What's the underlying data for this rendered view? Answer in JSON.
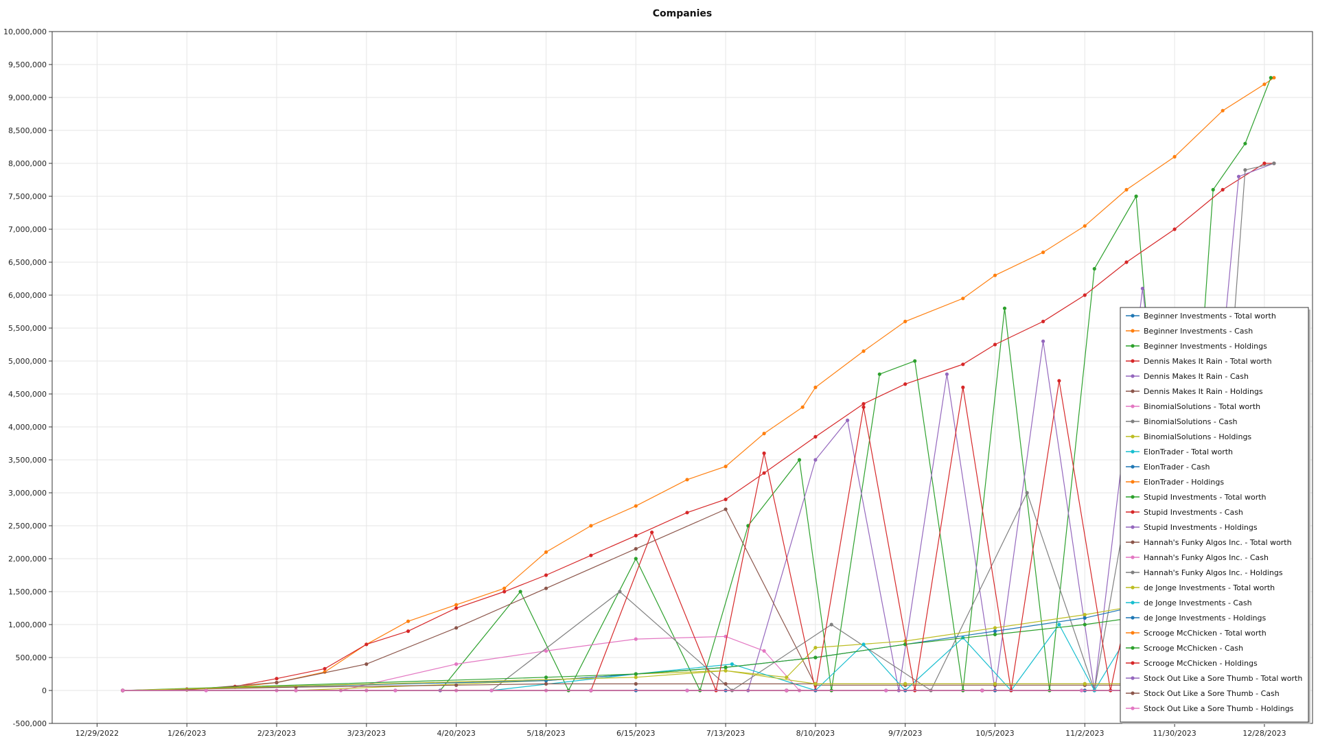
{
  "chart_data": {
    "type": "line",
    "title": "Companies",
    "xlabel": "",
    "ylabel": "",
    "ylim": [
      -500000,
      10000000
    ],
    "xlim": [
      "2022-12-15",
      "2024-01-12"
    ],
    "y_ticks": [
      -500000,
      0,
      500000,
      1000000,
      1500000,
      2000000,
      2500000,
      3000000,
      3500000,
      4000000,
      4500000,
      5000000,
      5500000,
      6000000,
      6500000,
      7000000,
      7500000,
      8000000,
      8500000,
      9000000,
      9500000,
      10000000
    ],
    "y_tick_labels": [
      "-500,000",
      "0",
      "500,000",
      "1,000,000",
      "1,500,000",
      "2,000,000",
      "2,500,000",
      "3,000,000",
      "3,500,000",
      "4,000,000",
      "4,500,000",
      "5,000,000",
      "5,500,000",
      "6,000,000",
      "6,500,000",
      "7,000,000",
      "7,500,000",
      "8,000,000",
      "8,500,000",
      "9,000,000",
      "9,500,000",
      "10,000,000"
    ],
    "x_ticks": [
      "2022-12-29",
      "2023-01-26",
      "2023-02-23",
      "2023-03-23",
      "2023-04-20",
      "2023-05-18",
      "2023-06-15",
      "2023-07-13",
      "2023-08-10",
      "2023-09-07",
      "2023-10-05",
      "2023-11-02",
      "2023-11-30",
      "2023-12-28"
    ],
    "x_tick_labels": [
      "12/29/2022",
      "1/26/2023",
      "2/23/2023",
      "3/23/2023",
      "4/20/2023",
      "5/18/2023",
      "6/15/2023",
      "7/13/2023",
      "8/10/2023",
      "9/7/2023",
      "10/5/2023",
      "11/2/2023",
      "11/30/2023",
      "12/28/2023"
    ],
    "grid": true,
    "legend_position": "right",
    "series": [
      {
        "name": "Beginner Investments - Total worth",
        "color": "#1f77b4",
        "x": [
          "2023-01-06",
          "2023-02-01",
          "2023-03-01",
          "2023-04-01",
          "2023-05-01",
          "2023-06-01",
          "2023-07-01",
          "2023-08-01",
          "2023-09-01",
          "2023-10-01",
          "2023-11-01",
          "2023-12-01",
          "2023-12-31"
        ],
        "y": [
          0,
          0,
          0,
          0,
          0,
          0,
          0,
          0,
          0,
          0,
          0,
          0,
          0
        ]
      },
      {
        "name": "Beginner Investments - Cash",
        "color": "#ff7f0e",
        "x": [
          "2023-01-06",
          "2023-01-26",
          "2023-02-10",
          "2023-02-23",
          "2023-03-10",
          "2023-03-23",
          "2023-04-05",
          "2023-04-20",
          "2023-05-05",
          "2023-05-18",
          "2023-06-01",
          "2023-06-15",
          "2023-07-01",
          "2023-07-13",
          "2023-07-25",
          "2023-08-06",
          "2023-08-10",
          "2023-08-25",
          "2023-09-07",
          "2023-09-25",
          "2023-10-05",
          "2023-10-20",
          "2023-11-02",
          "2023-11-15",
          "2023-11-30",
          "2023-12-15",
          "2023-12-28",
          "2023-12-31"
        ],
        "y": [
          0,
          10000,
          50000,
          120000,
          280000,
          700000,
          1050000,
          1300000,
          1550000,
          2100000,
          2500000,
          2800000,
          3200000,
          3400000,
          3900000,
          4300000,
          4600000,
          5150000,
          5600000,
          5950000,
          6300000,
          6650000,
          7050000,
          7600000,
          8100000,
          8800000,
          9200000,
          9300000
        ]
      },
      {
        "name": "Beginner Investments - Holdings",
        "color": "#2ca02c",
        "x": [
          "2023-01-06",
          "2023-03-01",
          "2023-04-15",
          "2023-05-10",
          "2023-05-25",
          "2023-06-15",
          "2023-07-05",
          "2023-07-20",
          "2023-08-05",
          "2023-08-15",
          "2023-08-30",
          "2023-09-10",
          "2023-09-25",
          "2023-10-08",
          "2023-10-22",
          "2023-11-05",
          "2023-11-18",
          "2023-12-01",
          "2023-12-12",
          "2023-12-22",
          "2023-12-30"
        ],
        "y": [
          0,
          0,
          0,
          1500000,
          0,
          2000000,
          0,
          2500000,
          3500000,
          0,
          4800000,
          5000000,
          0,
          5800000,
          0,
          6400000,
          7500000,
          0,
          7600000,
          8300000,
          9300000
        ]
      },
      {
        "name": "Dennis Makes It Rain - Total worth",
        "color": "#d62728",
        "x": [
          "2023-01-06",
          "2023-01-26",
          "2023-02-10",
          "2023-02-23",
          "2023-03-10",
          "2023-03-23",
          "2023-04-05",
          "2023-04-20",
          "2023-05-05",
          "2023-05-18",
          "2023-06-01",
          "2023-06-15",
          "2023-07-01",
          "2023-07-13",
          "2023-07-25",
          "2023-08-10",
          "2023-08-25",
          "2023-09-07",
          "2023-09-25",
          "2023-10-05",
          "2023-10-20",
          "2023-11-02",
          "2023-11-15",
          "2023-11-30",
          "2023-12-15",
          "2023-12-28",
          "2023-12-31"
        ],
        "y": [
          0,
          20000,
          60000,
          180000,
          330000,
          700000,
          900000,
          1250000,
          1500000,
          1750000,
          2050000,
          2350000,
          2700000,
          2900000,
          3300000,
          3850000,
          4350000,
          4650000,
          4950000,
          5250000,
          5600000,
          6000000,
          6500000,
          7000000,
          7600000,
          8000000,
          8000000
        ]
      },
      {
        "name": "Dennis Makes It Rain - Cash",
        "color": "#9467bd",
        "x": [
          "2023-01-06",
          "2023-04-15",
          "2023-06-01",
          "2023-07-20",
          "2023-08-10",
          "2023-08-20",
          "2023-09-05",
          "2023-09-20",
          "2023-10-05",
          "2023-10-20",
          "2023-11-05",
          "2023-11-20",
          "2023-12-05",
          "2023-12-20",
          "2023-12-31"
        ],
        "y": [
          0,
          0,
          0,
          0,
          3500000,
          4100000,
          0,
          4800000,
          0,
          5300000,
          0,
          6100000,
          0,
          7800000,
          8000000
        ]
      },
      {
        "name": "Dennis Makes It Rain - Holdings",
        "color": "#8c564b",
        "x": [
          "2023-01-06",
          "2023-01-26",
          "2023-02-23",
          "2023-03-23",
          "2023-04-20",
          "2023-05-18",
          "2023-06-15",
          "2023-07-13",
          "2023-08-10",
          "2023-09-07",
          "2023-10-05",
          "2023-11-02",
          "2023-11-30",
          "2023-12-28",
          "2023-12-31"
        ],
        "y": [
          0,
          10000,
          120000,
          400000,
          950000,
          1550000,
          2150000,
          2750000,
          80000,
          80000,
          80000,
          80000,
          80000,
          80000,
          80000
        ]
      },
      {
        "name": "BinomialSolutions - Total worth",
        "color": "#e377c2",
        "x": [
          "2023-01-06",
          "2023-03-15",
          "2023-04-20",
          "2023-05-18",
          "2023-06-15",
          "2023-07-13",
          "2023-07-25",
          "2023-08-05",
          "2023-09-07",
          "2023-10-05",
          "2023-11-02",
          "2023-12-01",
          "2023-12-31"
        ],
        "y": [
          0,
          0,
          400000,
          600000,
          780000,
          820000,
          600000,
          0,
          0,
          0,
          0,
          0,
          0
        ]
      },
      {
        "name": "BinomialSolutions - Cash",
        "color": "#7f7f7f",
        "x": [
          "2023-01-06",
          "2023-05-01",
          "2023-06-10",
          "2023-07-15",
          "2023-08-15",
          "2023-09-15",
          "2023-10-15",
          "2023-11-05",
          "2023-11-25",
          "2023-12-10",
          "2023-12-22",
          "2023-12-31"
        ],
        "y": [
          0,
          0,
          1500000,
          0,
          1000000,
          0,
          3000000,
          0,
          5500000,
          0,
          7900000,
          8000000
        ]
      },
      {
        "name": "BinomialSolutions - Holdings",
        "color": "#bcbd22",
        "x": [
          "2023-01-06",
          "2023-03-01",
          "2023-05-18",
          "2023-06-15",
          "2023-07-13",
          "2023-08-01",
          "2023-08-10",
          "2023-09-07",
          "2023-10-05",
          "2023-11-02",
          "2023-11-20",
          "2023-12-31"
        ],
        "y": [
          0,
          0,
          150000,
          250000,
          300000,
          200000,
          650000,
          750000,
          950000,
          1150000,
          1300000,
          1300000
        ]
      },
      {
        "name": "ElonTrader - Total worth",
        "color": "#17becf",
        "x": [
          "2023-01-06",
          "2023-05-01",
          "2023-06-15",
          "2023-07-15",
          "2023-08-10",
          "2023-08-25",
          "2023-09-07",
          "2023-09-25",
          "2023-10-10",
          "2023-10-25",
          "2023-11-05",
          "2023-11-20",
          "2023-12-05",
          "2023-12-31"
        ],
        "y": [
          0,
          0,
          250000,
          400000,
          0,
          700000,
          0,
          800000,
          0,
          1000000,
          0,
          1200000,
          0,
          1300000
        ]
      },
      {
        "name": "ElonTrader - Cash",
        "color": "#1f77b4",
        "x": [
          "2023-01-06",
          "2023-05-18",
          "2023-06-15",
          "2023-07-13",
          "2023-08-10",
          "2023-09-07",
          "2023-10-05",
          "2023-11-02",
          "2023-11-20",
          "2023-12-01",
          "2023-12-31"
        ],
        "y": [
          0,
          150000,
          250000,
          350000,
          500000,
          700000,
          900000,
          1100000,
          1300000,
          1400000,
          1400000
        ]
      },
      {
        "name": "ElonTrader - Holdings",
        "color": "#ff7f0e",
        "x": [
          "2023-01-06",
          "2023-06-01",
          "2023-08-10",
          "2023-09-07",
          "2023-10-05",
          "2023-11-02",
          "2023-12-31"
        ],
        "y": [
          0,
          0,
          0,
          0,
          0,
          0,
          0
        ]
      },
      {
        "name": "Stupid Investments - Total worth",
        "color": "#2ca02c",
        "x": [
          "2023-01-06",
          "2023-05-18",
          "2023-06-15",
          "2023-07-13",
          "2023-08-10",
          "2023-09-07",
          "2023-10-05",
          "2023-11-02",
          "2023-12-01",
          "2023-12-31"
        ],
        "y": [
          0,
          200000,
          250000,
          350000,
          500000,
          700000,
          850000,
          1000000,
          1200000,
          1300000
        ]
      },
      {
        "name": "Stupid Investments - Cash",
        "color": "#d62728",
        "x": [
          "2023-01-06",
          "2023-06-01",
          "2023-06-20",
          "2023-07-10",
          "2023-07-25",
          "2023-08-10",
          "2023-08-25",
          "2023-09-10",
          "2023-09-25",
          "2023-10-10",
          "2023-10-25",
          "2023-11-10",
          "2023-11-25",
          "2023-12-31"
        ],
        "y": [
          0,
          0,
          2400000,
          0,
          3600000,
          0,
          4300000,
          0,
          4600000,
          0,
          4700000,
          0,
          3500000,
          0
        ]
      },
      {
        "name": "Stupid Investments - Holdings",
        "color": "#9467bd",
        "x": [
          "2023-01-06",
          "2023-06-01",
          "2023-07-01",
          "2023-08-01",
          "2023-09-01",
          "2023-10-01",
          "2023-11-01",
          "2023-12-01",
          "2023-12-31"
        ],
        "y": [
          0,
          0,
          0,
          0,
          0,
          0,
          0,
          0,
          0
        ]
      },
      {
        "name": "Hannah's Funky Algos Inc. - Total worth",
        "color": "#8c564b",
        "x": [
          "2023-01-06",
          "2023-03-01",
          "2023-04-20",
          "2023-05-18",
          "2023-06-15",
          "2023-07-13",
          "2023-08-10",
          "2023-09-07",
          "2023-10-05",
          "2023-11-02",
          "2023-12-01",
          "2023-12-31"
        ],
        "y": [
          0,
          50000,
          80000,
          100000,
          100000,
          100000,
          100000,
          100000,
          100000,
          100000,
          100000,
          100000
        ]
      },
      {
        "name": "Hannah's Funky Algos Inc. - Cash",
        "color": "#e377c2",
        "x": [
          "2023-01-06",
          "2023-02-23",
          "2023-03-23",
          "2023-04-20",
          "2023-05-18",
          "2023-06-15",
          "2023-07-13",
          "2023-08-10",
          "2023-09-07",
          "2023-10-05",
          "2023-11-02",
          "2023-12-01",
          "2023-12-31"
        ],
        "y": [
          0,
          0,
          0,
          0,
          0,
          0,
          0,
          0,
          0,
          0,
          0,
          0,
          0
        ]
      },
      {
        "name": "Hannah's Funky Algos Inc. - Holdings",
        "color": "#7f7f7f",
        "x": [
          "2023-01-06",
          "2023-04-01",
          "2023-06-01",
          "2023-08-01",
          "2023-10-01",
          "2023-12-01",
          "2023-12-31"
        ],
        "y": [
          0,
          0,
          0,
          0,
          0,
          0,
          0
        ]
      },
      {
        "name": "de Jonge Investments - Total worth",
        "color": "#bcbd22",
        "x": [
          "2023-01-06",
          "2023-06-15",
          "2023-07-13",
          "2023-08-10",
          "2023-09-07",
          "2023-10-05",
          "2023-11-02",
          "2023-12-01",
          "2023-12-31"
        ],
        "y": [
          0,
          200000,
          300000,
          100000,
          100000,
          100000,
          100000,
          100000,
          100000
        ]
      },
      {
        "name": "de Jonge Investments - Cash",
        "color": "#17becf",
        "x": [
          "2023-01-06",
          "2023-06-01",
          "2023-07-01",
          "2023-08-01",
          "2023-09-01",
          "2023-10-01",
          "2023-11-01",
          "2023-12-01",
          "2023-12-31"
        ],
        "y": [
          0,
          0,
          0,
          0,
          0,
          0,
          0,
          0,
          0
        ]
      },
      {
        "name": "de Jonge Investments - Holdings",
        "color": "#1f77b4",
        "x": [
          "2023-01-06",
          "2023-06-15",
          "2023-07-13",
          "2023-08-10",
          "2023-09-07",
          "2023-10-05",
          "2023-11-02",
          "2023-12-01",
          "2023-12-31"
        ],
        "y": [
          0,
          0,
          0,
          0,
          0,
          0,
          0,
          0,
          0
        ]
      },
      {
        "name": "Scrooge McChicken - Total worth",
        "color": "#ff7f0e",
        "x": [
          "2023-01-06",
          "2023-06-01",
          "2023-08-01",
          "2023-10-01",
          "2023-12-01",
          "2023-12-31"
        ],
        "y": [
          0,
          0,
          0,
          0,
          0,
          0
        ]
      },
      {
        "name": "Scrooge McChicken - Cash",
        "color": "#2ca02c",
        "x": [
          "2023-01-06",
          "2023-06-01",
          "2023-08-01",
          "2023-10-01",
          "2023-12-01",
          "2023-12-31"
        ],
        "y": [
          0,
          0,
          0,
          0,
          0,
          0
        ]
      },
      {
        "name": "Scrooge McChicken - Holdings",
        "color": "#d62728",
        "x": [
          "2023-01-06",
          "2023-06-01",
          "2023-08-01",
          "2023-10-01",
          "2023-12-01",
          "2023-12-31"
        ],
        "y": [
          0,
          0,
          0,
          0,
          0,
          0
        ]
      },
      {
        "name": "Stock Out Like a Sore Thumb - Total worth",
        "color": "#9467bd",
        "x": [
          "2023-01-06",
          "2023-06-01",
          "2023-08-01",
          "2023-10-01",
          "2023-12-01",
          "2023-12-31"
        ],
        "y": [
          0,
          0,
          0,
          0,
          0,
          0
        ]
      },
      {
        "name": "Stock Out Like a Sore Thumb - Cash",
        "color": "#8c564b",
        "x": [
          "2023-01-06",
          "2023-06-01",
          "2023-08-01",
          "2023-10-01",
          "2023-12-01",
          "2023-12-31"
        ],
        "y": [
          0,
          0,
          0,
          0,
          0,
          0
        ]
      },
      {
        "name": "Stock Out Like a Sore Thumb - Holdings",
        "color": "#e377c2",
        "x": [
          "2023-01-06",
          "2023-02-01",
          "2023-03-01",
          "2023-04-01",
          "2023-05-01",
          "2023-06-01",
          "2023-07-01",
          "2023-08-01",
          "2023-09-01",
          "2023-10-01",
          "2023-11-01",
          "2023-12-01",
          "2023-12-31"
        ],
        "y": [
          0,
          0,
          0,
          0,
          0,
          0,
          0,
          0,
          0,
          0,
          0,
          0,
          0
        ]
      }
    ]
  }
}
